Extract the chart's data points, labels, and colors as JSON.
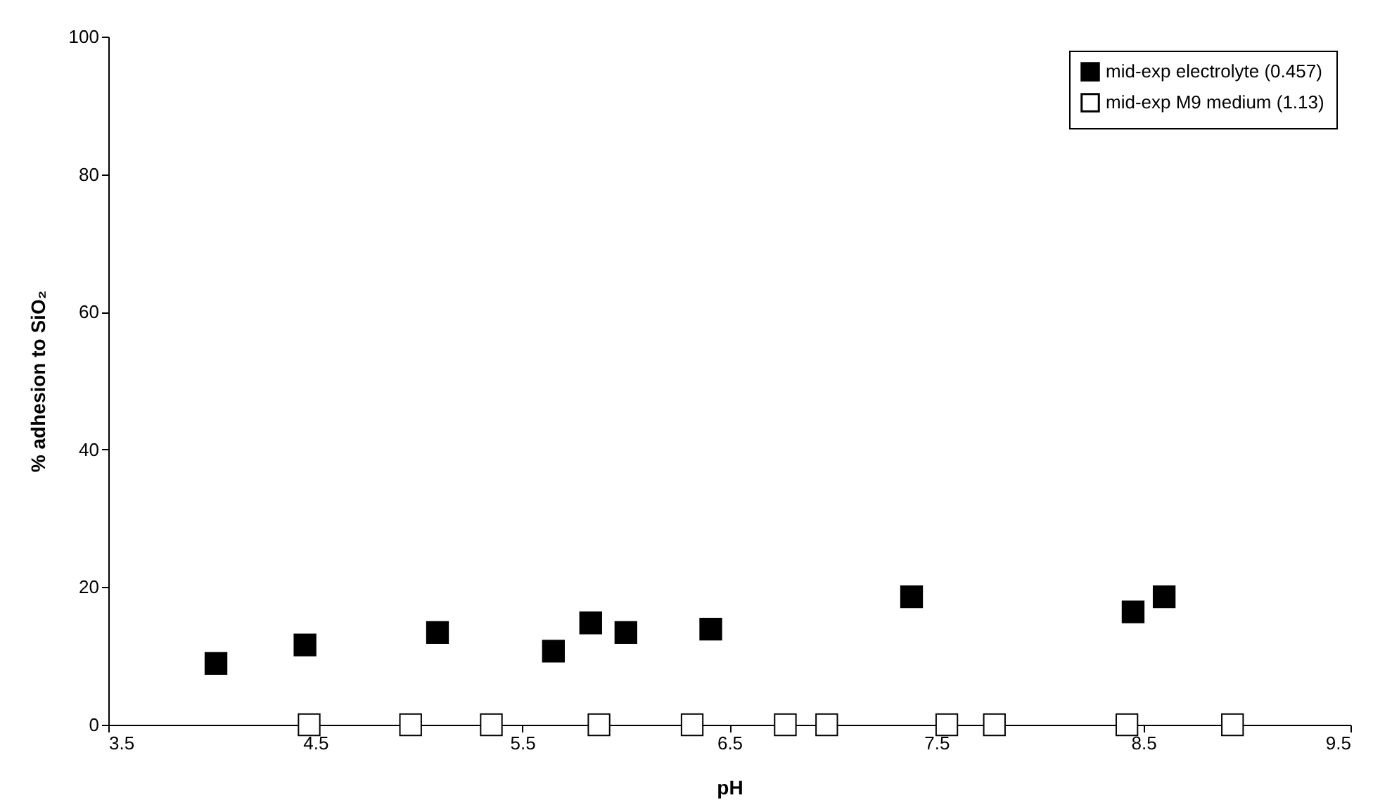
{
  "chart_data": {
    "type": "scatter",
    "xlabel": "pH",
    "ylabel": "% adhesion to SiO₂",
    "xlim": [
      3.5,
      9.5
    ],
    "xticks": [
      3.5,
      4.5,
      5.5,
      6.5,
      7.5,
      8.5,
      9.5
    ],
    "ylim": [
      0,
      100
    ],
    "yticks": [
      0,
      20,
      40,
      60,
      80,
      100
    ],
    "grid": false,
    "legend": "top right",
    "marker": "square",
    "series": [
      {
        "name": "mid-exp electrolyte (0.457)",
        "color": "#000000",
        "x": [
          4.02,
          4.45,
          5.09,
          5.65,
          5.83,
          6.0,
          6.41,
          7.38,
          8.45,
          8.6
        ],
        "values": [
          8.9,
          11.6,
          13.4,
          10.7,
          14.8,
          13.4,
          13.9,
          18.6,
          16.4,
          18.6
        ]
      },
      {
        "name": "mid-exp M9 medium (1.13)",
        "color": "#ffffff",
        "x": [
          4.47,
          4.96,
          5.35,
          5.87,
          6.32,
          6.77,
          6.97,
          7.55,
          7.78,
          8.42,
          8.93
        ],
        "values": [
          0,
          0,
          0,
          0,
          0,
          0,
          0,
          0,
          0,
          0,
          0
        ]
      }
    ]
  }
}
